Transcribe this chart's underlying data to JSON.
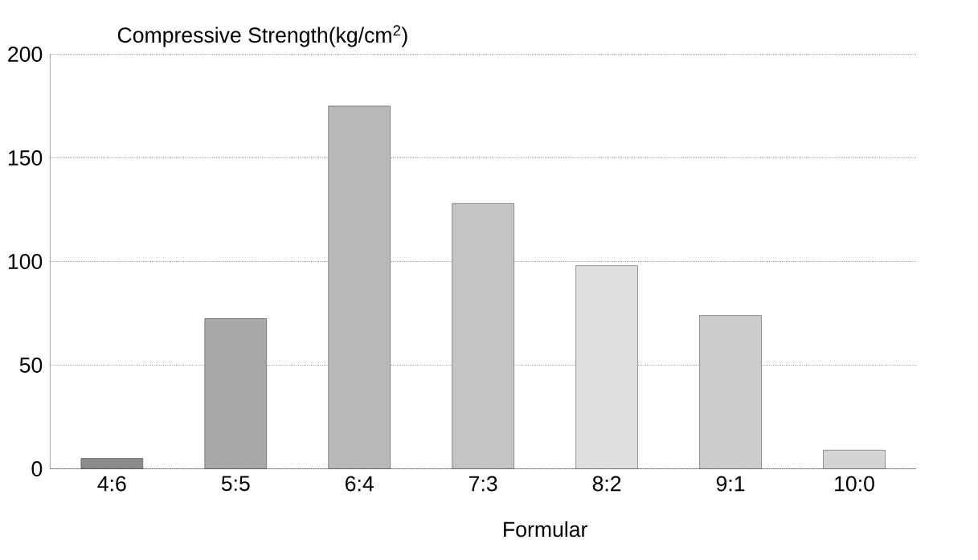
{
  "chart_data": {
    "type": "bar",
    "ylabel": "Compressive Strength(kg/cm$^{2}$)",
    "xlabel": "Formular",
    "categories": [
      "4:6",
      "5:5",
      "6:4",
      "7:3",
      "8:2",
      "9:1",
      "10:0"
    ],
    "values": [
      5,
      72.5,
      175,
      128,
      98,
      74,
      9
    ],
    "colors": [
      "#8c8c8c",
      "#a8a8a8",
      "#b8b8b8",
      "#c4c4c4",
      "#dedede",
      "#cccccc",
      "#d4d4d4"
    ],
    "ylim": [
      0,
      200
    ],
    "yticks": [
      0,
      50,
      100,
      150,
      200
    ],
    "grid": "y"
  }
}
